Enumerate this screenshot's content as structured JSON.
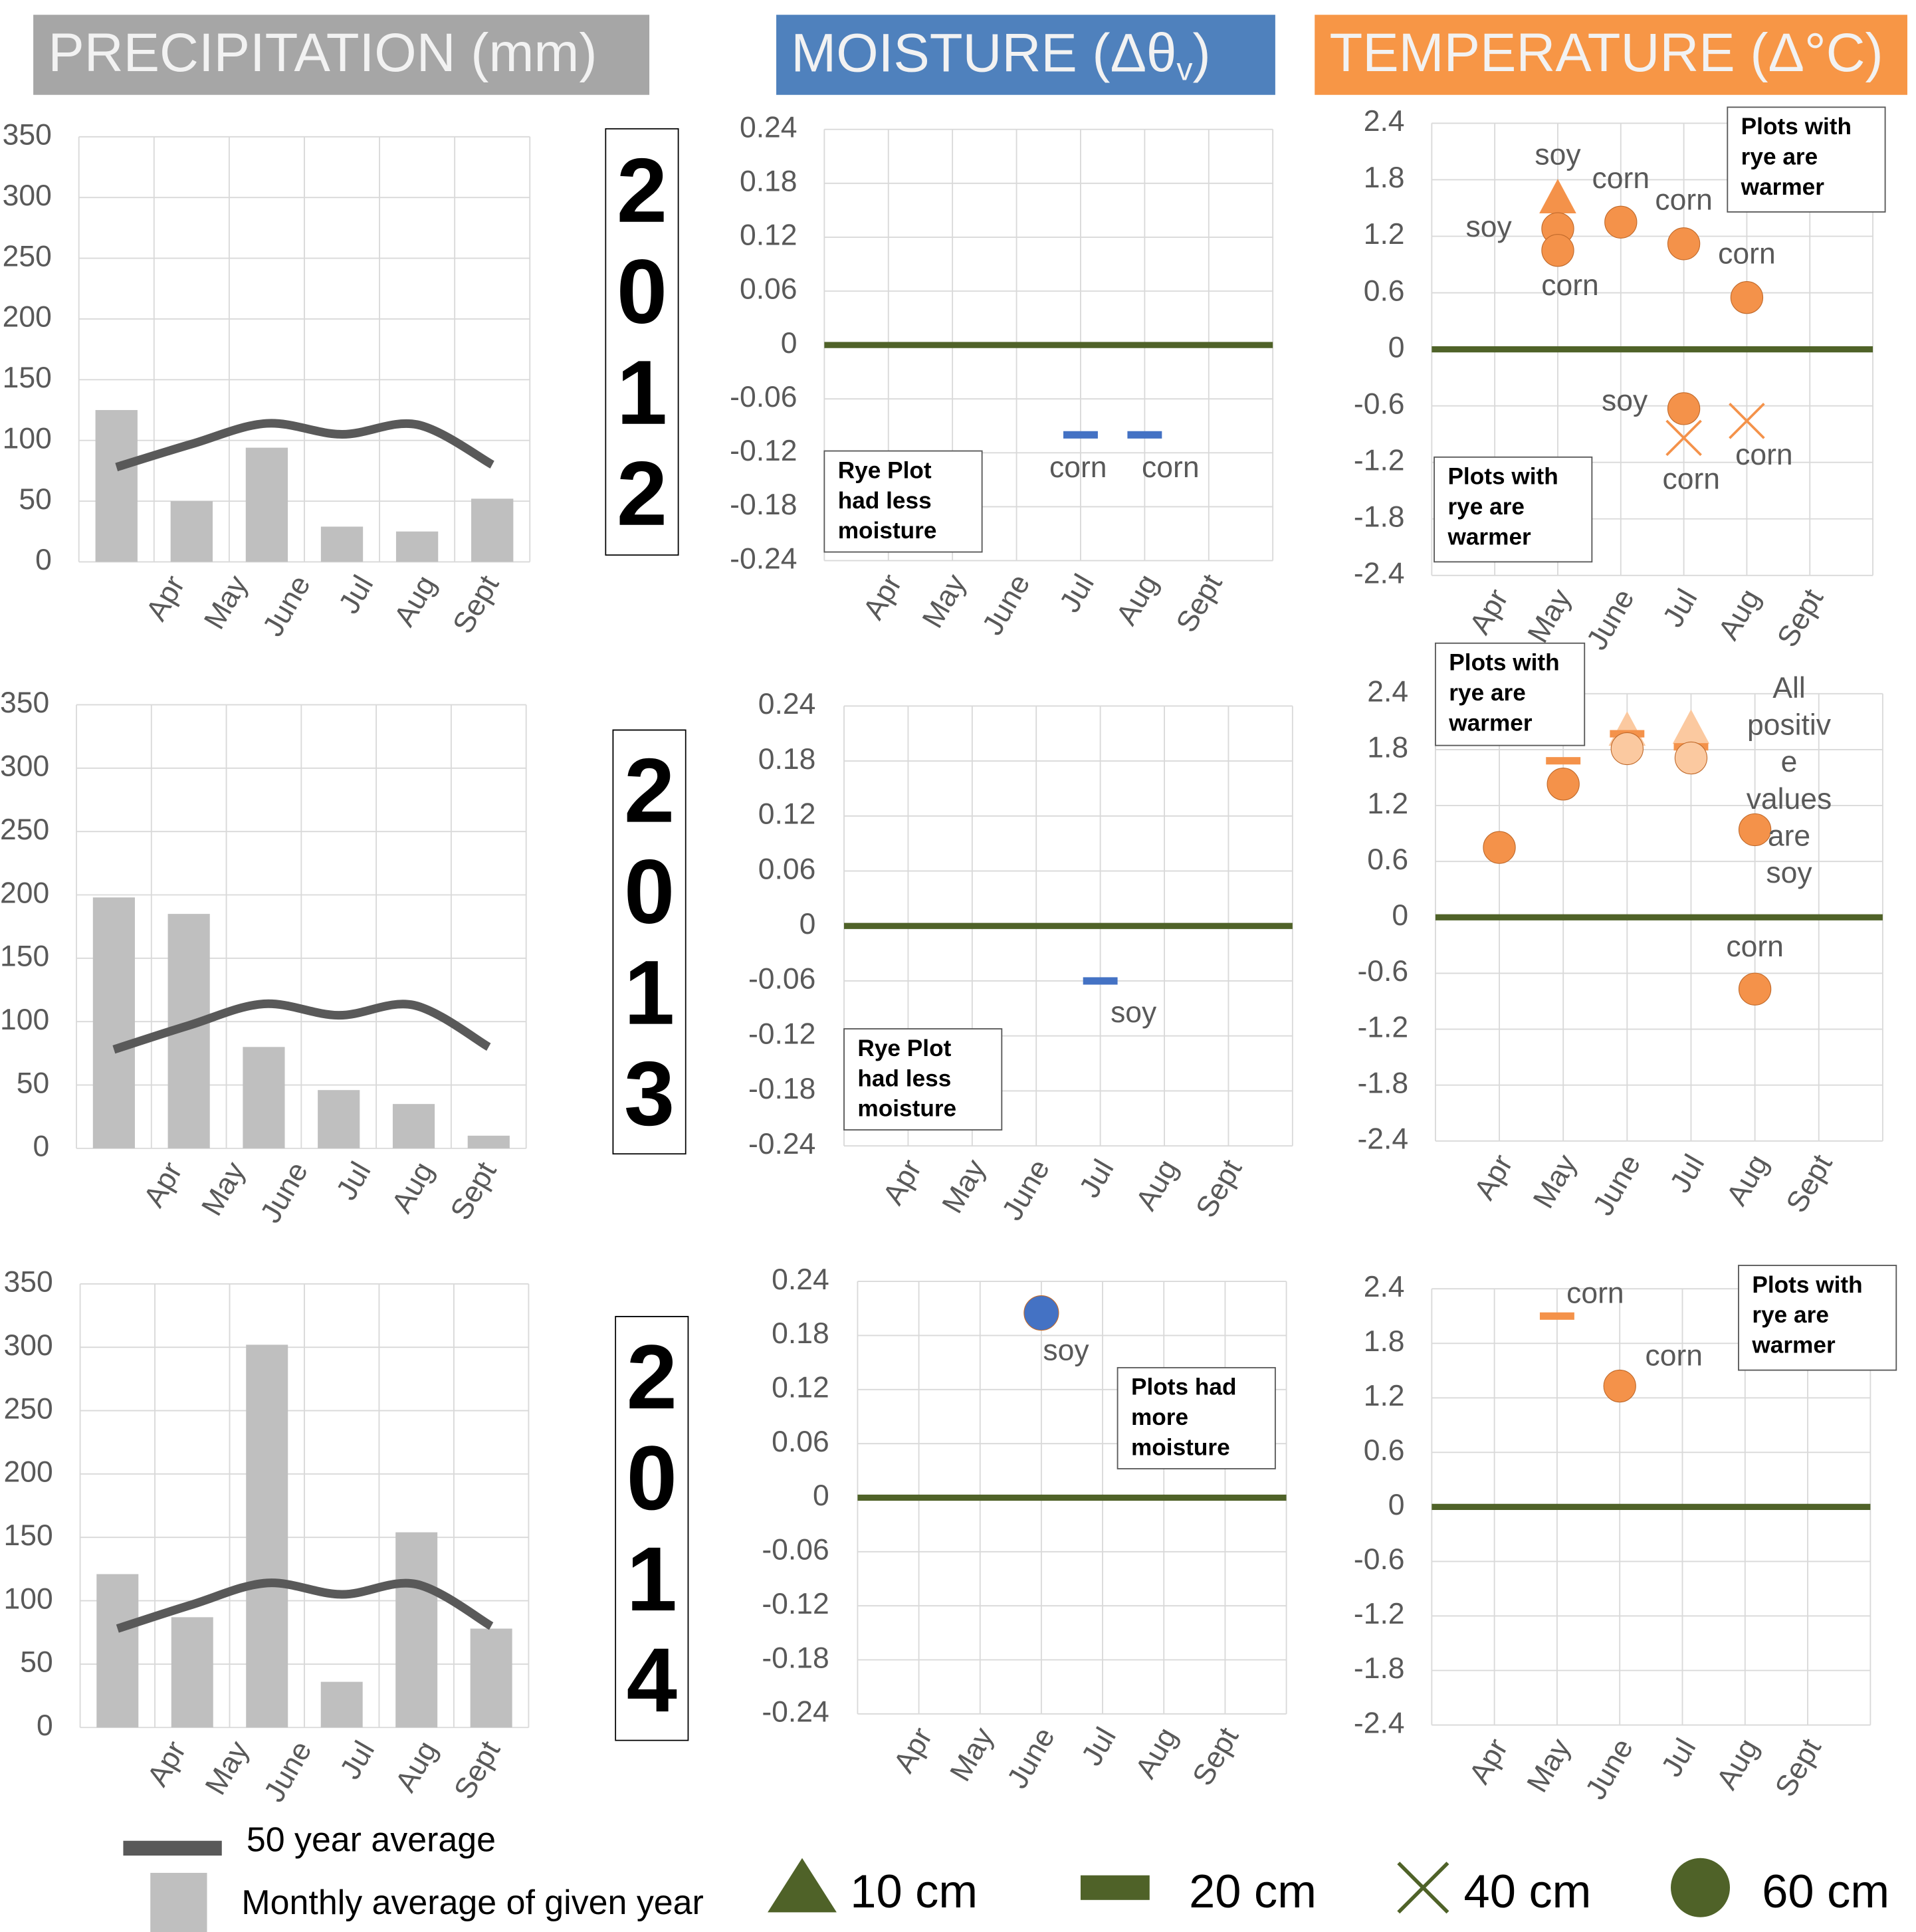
{
  "headers": [
    {
      "text": "PRECIPITATION (mm)",
      "color": "#a6a6a6"
    },
    {
      "parts": [
        "MOISTURE (Δθ",
        "v",
        ")"
      ],
      "color": "#4f81bd"
    },
    {
      "text": "TEMPERATURE (Δ°C)",
      "color": "#f79646"
    }
  ],
  "years": [
    "2012",
    "2013",
    "2014"
  ],
  "depth_legend": [
    {
      "name": "10 cm",
      "marker": "triangle",
      "color": "#4f6228"
    },
    {
      "name": "20 cm",
      "marker": "dash",
      "color": "#4f6228"
    },
    {
      "name": "40 cm",
      "marker": "x",
      "color": "#4f6228"
    },
    {
      "name": "60 cm",
      "marker": "circle",
      "color": "#4f6228"
    }
  ],
  "chart_data": [
    {
      "type": "bar",
      "categories": [
        "Apr",
        "May",
        "June",
        "Jul",
        "Aug",
        "Sept"
      ],
      "series": [
        {
          "type": "bar",
          "color": "#bfbfbf",
          "values": [
            125,
            50,
            94,
            29,
            25,
            52
          ]
        },
        {
          "type": "line",
          "color": "#595959",
          "values": [
            78,
            97,
            114,
            105,
            113,
            80
          ]
        }
      ],
      "ylim": [
        0,
        350
      ],
      "yticks": [
        0,
        50,
        100,
        150,
        200,
        250,
        300,
        350
      ],
      "grid": true
    },
    {
      "type": "scatter",
      "categories": [
        "Apr",
        "May",
        "June",
        "Jul",
        "Aug",
        "Sept"
      ],
      "series": [
        {
          "marker": "dash",
          "color": "#4472c4",
          "values": [
            null,
            null,
            null,
            -0.1,
            -0.1,
            null
          ],
          "point_labels": [
            null,
            null,
            null,
            "corn",
            "corn",
            null
          ]
        }
      ],
      "ylim": [
        -0.24,
        0.24
      ],
      "yticks": [
        -0.24,
        -0.18,
        -0.12,
        -0.06,
        0,
        0.06,
        0.12,
        0.18,
        0.24
      ],
      "grid": true,
      "zero_line_color": "#4f6228",
      "annotations": [
        [
          "Rye Plot",
          "had less",
          "moisture"
        ]
      ]
    },
    {
      "type": "scatter",
      "categories": [
        "Apr",
        "May",
        "June",
        "Jul",
        "Aug",
        "Sept"
      ],
      "series": [
        {
          "marker": "triangle",
          "color": "#f4924a",
          "values": [
            null,
            1.6,
            null,
            null,
            null,
            null
          ],
          "point_labels": [
            null,
            "soy",
            null,
            null,
            null,
            null
          ]
        },
        {
          "marker": "circle",
          "color": "#f4924a",
          "values": [
            null,
            1.28,
            1.35,
            1.12,
            0.55,
            null
          ],
          "point_labels": [
            null,
            "soy",
            "corn",
            "corn",
            "corn",
            null
          ]
        },
        {
          "marker": "circle",
          "color": "#f4924a",
          "values": [
            null,
            1.05,
            null,
            -0.63,
            null,
            null
          ],
          "point_labels": [
            null,
            "corn",
            null,
            "soy",
            null,
            null
          ]
        },
        {
          "marker": "x",
          "color": "#f4924a",
          "values": [
            null,
            null,
            null,
            -0.94,
            -0.76,
            null
          ],
          "point_labels": [
            null,
            null,
            null,
            "corn",
            "corn",
            null
          ]
        }
      ],
      "ylim": [
        -2.4,
        2.4
      ],
      "yticks": [
        -2.4,
        -1.8,
        -1.2,
        -0.6,
        0,
        0.6,
        1.2,
        1.8,
        2.4
      ],
      "grid": true,
      "zero_line_color": "#4f6228",
      "annotations": [
        [
          "Plots with",
          "rye are",
          "warmer"
        ],
        [
          "Plots with",
          "rye are",
          "warmer"
        ]
      ]
    },
    {
      "type": "bar",
      "categories": [
        "Apr",
        "May",
        "June",
        "Jul",
        "Aug",
        "Sept"
      ],
      "series": [
        {
          "type": "bar",
          "color": "#bfbfbf",
          "values": [
            198,
            185,
            80,
            46,
            35,
            10
          ]
        },
        {
          "type": "line",
          "color": "#595959",
          "values": [
            78,
            97,
            114,
            105,
            113,
            80
          ]
        }
      ],
      "ylim": [
        0,
        350
      ],
      "yticks": [
        0,
        50,
        100,
        150,
        200,
        250,
        300,
        350
      ],
      "grid": true
    },
    {
      "type": "scatter",
      "categories": [
        "Apr",
        "May",
        "June",
        "Jul",
        "Aug",
        "Sept"
      ],
      "series": [
        {
          "marker": "dash",
          "color": "#4472c4",
          "values": [
            null,
            null,
            null,
            -0.06,
            null,
            null
          ],
          "point_labels": [
            null,
            null,
            null,
            "soy",
            null,
            null
          ]
        }
      ],
      "ylim": [
        -0.24,
        0.24
      ],
      "yticks": [
        -0.24,
        -0.18,
        -0.12,
        -0.06,
        0,
        0.06,
        0.12,
        0.18,
        0.24
      ],
      "grid": true,
      "zero_line_color": "#4f6228",
      "annotations": [
        [
          "Rye Plot",
          "had less",
          "moisture"
        ]
      ]
    },
    {
      "type": "scatter",
      "categories": [
        "Apr",
        "May",
        "June",
        "Jul",
        "Aug",
        "Sept"
      ],
      "series": [
        {
          "marker": "triangle",
          "color": "#fbc9a0",
          "values": [
            null,
            null,
            2.0,
            2.02,
            null,
            null
          ]
        },
        {
          "marker": "dash",
          "color": "#f4924a",
          "values": [
            null,
            1.68,
            1.97,
            1.83,
            null,
            null
          ]
        },
        {
          "marker": "circle",
          "color": "#f4924a",
          "values": [
            0.75,
            1.43,
            null,
            null,
            0.94,
            null
          ]
        },
        {
          "marker": "circle",
          "color": "#fbc9a0",
          "values": [
            null,
            null,
            1.81,
            1.71,
            null,
            null
          ]
        },
        {
          "marker": "circle",
          "color": "#f4924a",
          "values": [
            null,
            null,
            null,
            null,
            -0.77,
            null
          ],
          "point_labels": [
            null,
            null,
            null,
            null,
            "corn",
            null
          ]
        }
      ],
      "ylim": [
        -2.4,
        2.4
      ],
      "yticks": [
        -2.4,
        -1.8,
        -1.2,
        -0.6,
        0,
        0.6,
        1.2,
        1.8,
        2.4
      ],
      "grid": true,
      "zero_line_color": "#4f6228",
      "annotations": [
        [
          "Plots with",
          "rye are",
          "warmer"
        ]
      ],
      "note_lines": [
        "All",
        "positiv",
        "e",
        "values",
        "are",
        "soy"
      ]
    },
    {
      "type": "bar",
      "categories": [
        "Apr",
        "May",
        "June",
        "Jul",
        "Aug",
        "Sept"
      ],
      "series": [
        {
          "type": "bar",
          "name": "Monthly average of given year",
          "color": "#bfbfbf",
          "values": [
            121,
            87,
            302,
            36,
            154,
            78
          ]
        },
        {
          "type": "line",
          "name": "50 year average",
          "color": "#595959",
          "values": [
            78,
            97,
            114,
            105,
            113,
            80
          ]
        }
      ],
      "ylim": [
        0,
        350
      ],
      "yticks": [
        0,
        50,
        100,
        150,
        200,
        250,
        300,
        350
      ],
      "grid": true
    },
    {
      "type": "scatter",
      "categories": [
        "Apr",
        "May",
        "June",
        "Jul",
        "Aug",
        "Sept"
      ],
      "series": [
        {
          "marker": "circle",
          "color": "#4472c4",
          "values": [
            null,
            null,
            0.205,
            null,
            null,
            null
          ],
          "point_labels": [
            null,
            null,
            "soy",
            null,
            null,
            null
          ]
        }
      ],
      "ylim": [
        -0.24,
        0.24
      ],
      "yticks": [
        -0.24,
        -0.18,
        -0.12,
        -0.06,
        0,
        0.06,
        0.12,
        0.18,
        0.24
      ],
      "grid": true,
      "zero_line_color": "#4f6228",
      "annotations": [
        [
          "Plots had",
          "more",
          "moisture"
        ]
      ]
    },
    {
      "type": "scatter",
      "categories": [
        "Apr",
        "May",
        "June",
        "Jul",
        "Aug",
        "Sept"
      ],
      "series": [
        {
          "marker": "dash",
          "color": "#f4924a",
          "values": [
            null,
            2.1,
            null,
            null,
            null,
            null
          ],
          "point_labels": [
            null,
            "corn",
            null,
            null,
            null,
            null
          ]
        },
        {
          "marker": "circle",
          "color": "#f4924a",
          "values": [
            null,
            null,
            1.33,
            null,
            null,
            null
          ],
          "point_labels": [
            null,
            null,
            "corn",
            null,
            null,
            null
          ]
        }
      ],
      "ylim": [
        -2.4,
        2.4
      ],
      "yticks": [
        -2.4,
        -1.8,
        -1.2,
        -0.6,
        0,
        0.6,
        1.2,
        1.8,
        2.4
      ],
      "grid": true,
      "zero_line_color": "#4f6228",
      "annotations": [
        [
          "Plots with",
          "rye are",
          "warmer"
        ]
      ]
    }
  ]
}
